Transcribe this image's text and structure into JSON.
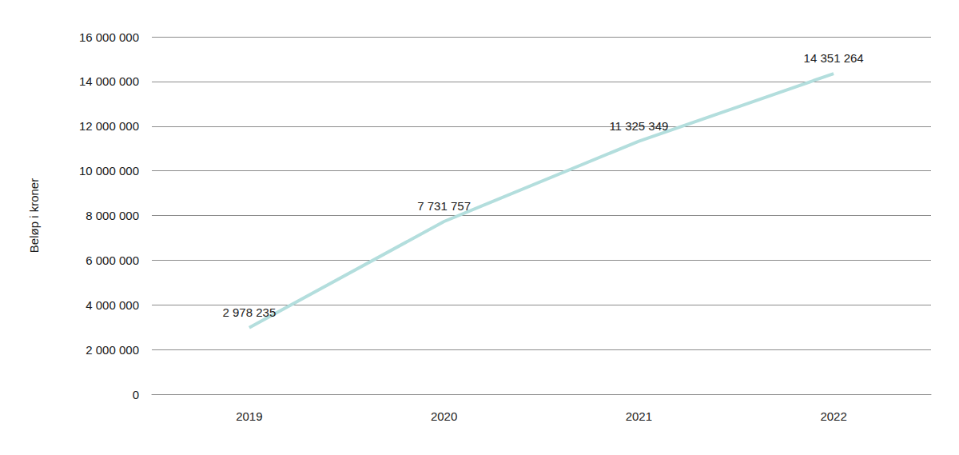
{
  "chart_data": {
    "type": "line",
    "categories": [
      "2019",
      "2020",
      "2021",
      "2022"
    ],
    "values": [
      2978235,
      7731757,
      11325349,
      14351264
    ],
    "value_labels": [
      "2 978 235",
      "7 731 757",
      "11 325 349",
      "14 351 264"
    ],
    "data_labels": true,
    "color": "#b3dedd",
    "ylabel": "Beløp i kroner",
    "ylim": [
      0,
      16000000
    ],
    "yticks": [
      0,
      {
        "value": 2000000,
        "label": "2 000 000"
      },
      {
        "value": 4000000,
        "label": "4 000 000"
      },
      {
        "value": 6000000,
        "label": "6 000 000"
      },
      {
        "value": 8000000,
        "label": "8 000 000"
      },
      {
        "value": 10000000,
        "label": "10 000 000"
      },
      {
        "value": 12000000,
        "label": "12 000 000"
      },
      {
        "value": 14000000,
        "label": "14 000 000"
      },
      {
        "value": 16000000,
        "label": "16 000 000"
      }
    ],
    "grid": true
  }
}
